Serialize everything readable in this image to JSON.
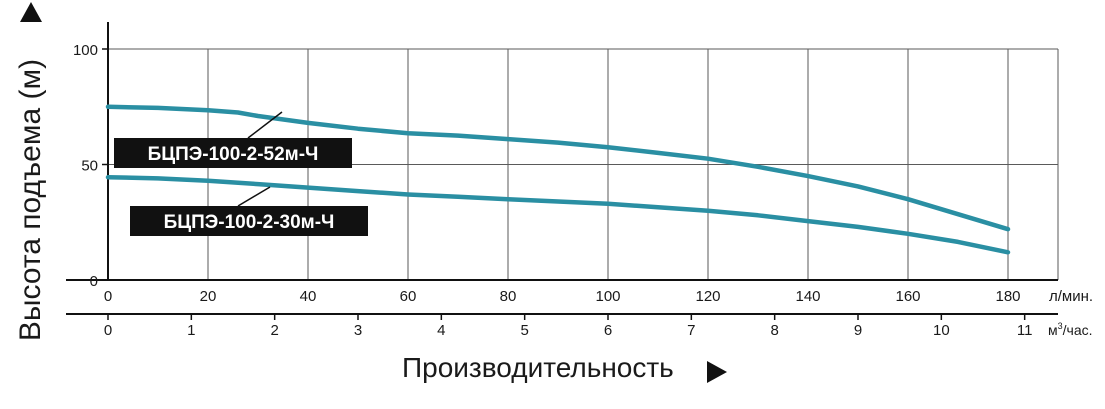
{
  "chart_data": {
    "type": "line",
    "ylabel": "Высота подъема (м)",
    "xlabel": "Производительность",
    "xlim": [
      0,
      190
    ],
    "ylim": [
      0,
      100
    ],
    "x_ticks": [
      0,
      20,
      40,
      60,
      80,
      100,
      120,
      140,
      160,
      180
    ],
    "x_unit": "л/мин.",
    "y_ticks": [
      0,
      50,
      100
    ],
    "x2_ticks": [
      0,
      1,
      2,
      3,
      4,
      5,
      6,
      7,
      8,
      9,
      10,
      11
    ],
    "x2_unit_base": "м",
    "x2_unit_sup": "3",
    "x2_unit_rest": "/час.",
    "grid": true,
    "line_color": "#2a8fa3",
    "series": [
      {
        "name": "БЦПЭ-100-2-52м-Ч",
        "x": [
          0,
          10,
          20,
          26,
          30,
          40,
          50,
          60,
          70,
          80,
          90,
          100,
          110,
          120,
          130,
          140,
          150,
          160,
          170,
          180
        ],
        "y": [
          75,
          74.5,
          73.5,
          72.5,
          71,
          68,
          65.5,
          63.5,
          62.5,
          61,
          59.5,
          57.5,
          55,
          52.5,
          49,
          45,
          40.5,
          35,
          28.5,
          22
        ]
      },
      {
        "name": "БЦПЭ-100-2-30м-Ч",
        "x": [
          0,
          10,
          20,
          30,
          40,
          50,
          60,
          70,
          80,
          90,
          100,
          110,
          120,
          130,
          140,
          150,
          160,
          170,
          180
        ],
        "y": [
          44.5,
          44,
          43,
          41.5,
          40,
          38.5,
          37,
          36,
          35,
          34,
          33,
          31.5,
          30,
          28,
          25.5,
          23,
          20,
          16.5,
          12
        ]
      }
    ]
  }
}
